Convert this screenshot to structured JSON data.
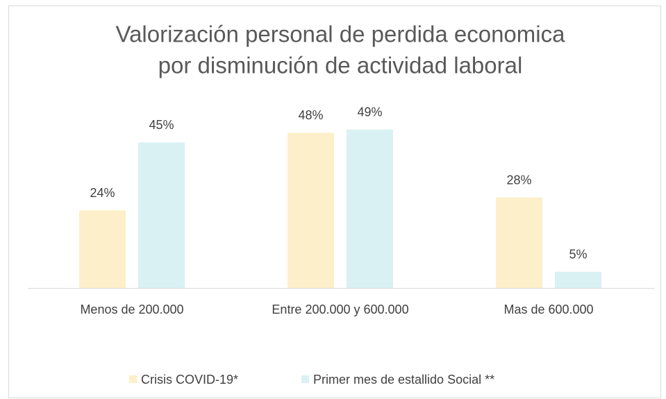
{
  "chart_data": {
    "type": "bar",
    "title": [
      "Valorización personal de perdida economica",
      "por disminución de actividad laboral"
    ],
    "categories": [
      "Menos de 200.000",
      "Entre 200.000 y 600.000",
      "Mas de 600.000"
    ],
    "series": [
      {
        "name": "Crisis COVID-19*",
        "color": "#fdefc9",
        "values": [
          24,
          48,
          28
        ],
        "value_labels": [
          "24%",
          "48%",
          "28%"
        ]
      },
      {
        "name": "Primer mes de estallido Social **",
        "color": "#d9f1f3",
        "values": [
          45,
          49,
          5
        ],
        "value_labels": [
          "45%",
          "49%",
          "5%"
        ]
      }
    ],
    "legend": "bottom"
  }
}
